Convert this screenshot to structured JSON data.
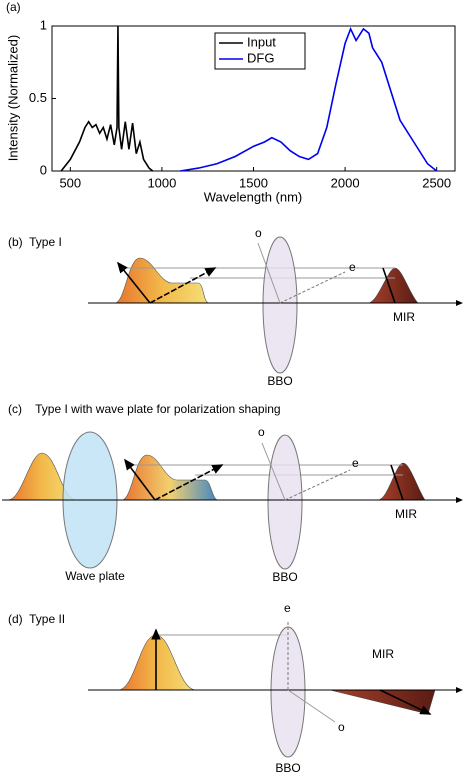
{
  "chart_data": {
    "type": "line",
    "panel_label": "(a)",
    "xlabel": "Wavelength (nm)",
    "ylabel": "Intensity (Normalized)",
    "xlim": [
      400,
      2600
    ],
    "xticks": [
      500,
      1000,
      1500,
      2000,
      2500
    ],
    "ylim": [
      0,
      1
    ],
    "yticks": [
      0,
      0.5,
      1
    ],
    "grid": false,
    "legend": "upper center",
    "series": [
      {
        "name": "Input",
        "color": "#000000",
        "x": [
          450,
          500,
          550,
          580,
          600,
          620,
          640,
          660,
          680,
          700,
          720,
          740,
          755,
          760,
          765,
          780,
          800,
          820,
          840,
          860,
          880,
          900,
          930,
          950
        ],
        "values": [
          0,
          0.08,
          0.2,
          0.3,
          0.34,
          0.3,
          0.32,
          0.26,
          0.3,
          0.22,
          0.32,
          0.18,
          0.3,
          1,
          0.3,
          0.15,
          0.34,
          0.15,
          0.33,
          0.12,
          0.2,
          0.08,
          0.02,
          0
        ]
      },
      {
        "name": "DFG",
        "color": "#0000ee",
        "x": [
          1100,
          1200,
          1300,
          1400,
          1500,
          1560,
          1600,
          1650,
          1700,
          1750,
          1800,
          1850,
          1900,
          1950,
          2000,
          2030,
          2060,
          2100,
          2130,
          2150,
          2200,
          2250,
          2300,
          2350,
          2400,
          2450,
          2500
        ],
        "values": [
          0,
          0.02,
          0.05,
          0.1,
          0.17,
          0.2,
          0.23,
          0.2,
          0.14,
          0.1,
          0.08,
          0.12,
          0.3,
          0.6,
          0.88,
          0.98,
          0.9,
          0.98,
          0.95,
          0.85,
          0.75,
          0.55,
          0.35,
          0.25,
          0.15,
          0.05,
          0
        ]
      }
    ]
  },
  "panels": [
    {
      "label": "(b)  Type I",
      "o": "o",
      "e": "e",
      "output": "MIR",
      "crystal": "BBO"
    },
    {
      "label": "(c)    Type I with wave plate for polarization shaping",
      "o": "o",
      "e": "e",
      "output": "MIR",
      "crystal": "BBO",
      "plate": "Wave plate"
    },
    {
      "label": "(d)  Type II",
      "e": "e",
      "o": "o",
      "output": "MIR",
      "crystal": "BBO"
    }
  ]
}
